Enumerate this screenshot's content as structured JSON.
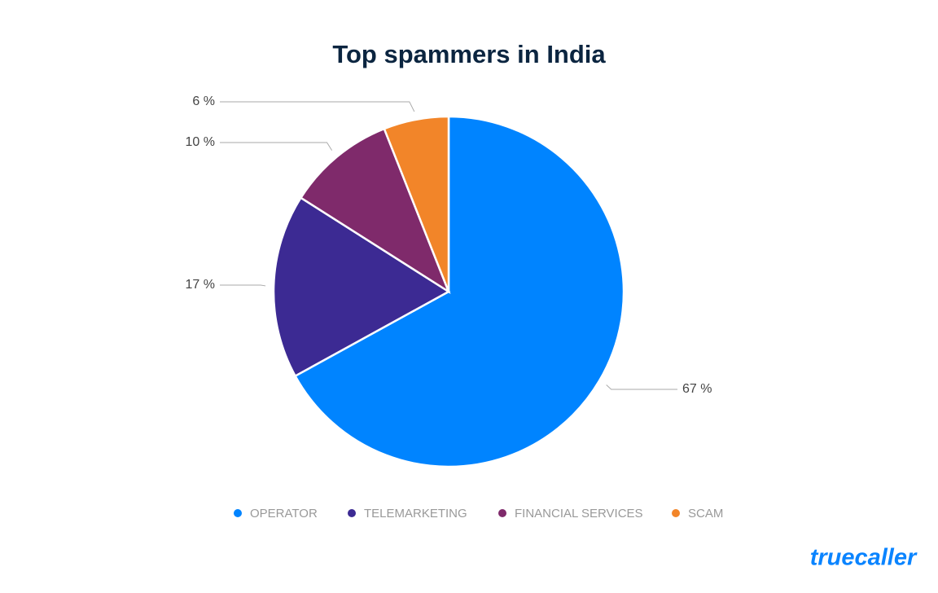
{
  "chart_data": {
    "type": "pie",
    "title": "Top spammers in India",
    "categories": [
      "OPERATOR",
      "TELEMARKETING",
      "FINANCIAL SERVICES",
      "SCAM"
    ],
    "values": [
      67,
      17,
      10,
      6
    ],
    "value_labels": [
      "67 %",
      "17 %",
      "10 %",
      "6 %"
    ],
    "colors": [
      "#0084ff",
      "#3c2a93",
      "#7f2a6b",
      "#f28529"
    ],
    "legend": "bottom"
  },
  "brand": "truecaller"
}
